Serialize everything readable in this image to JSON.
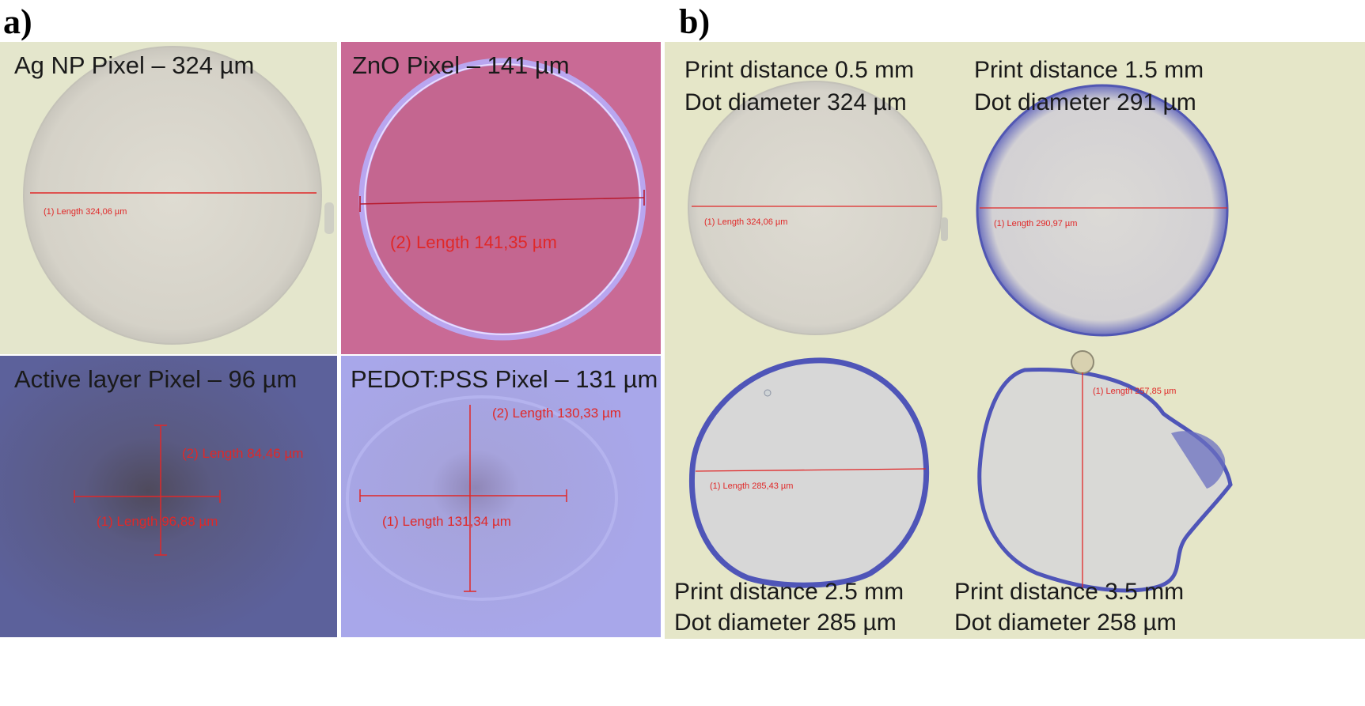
{
  "panel_a": {
    "letter": "a)",
    "tiles": [
      {
        "caption": "Ag NP Pixel – 324 µm",
        "measurements": [
          "(1)  Length 324,06 µm"
        ]
      },
      {
        "caption": "ZnO Pixel – 141 µm",
        "measurements": [
          "(2)  Length 141,35 µm"
        ]
      },
      {
        "caption": "Active layer Pixel – 96 µm",
        "measurements": [
          "(2)  Length 84,46 µm",
          "(1)  Length 96,88 µm"
        ]
      },
      {
        "caption": "PEDOT:PSS Pixel – 131 µm",
        "measurements": [
          "(2)  Length 130,33 µm",
          "(1)  Length 131,34 µm"
        ]
      }
    ]
  },
  "panel_b": {
    "letter": "b)",
    "tiles": [
      {
        "line1": "Print distance 0.5 mm",
        "line2": "Dot diameter 324 µm",
        "measurement": "(1)  Length 324,06 µm"
      },
      {
        "line1": "Print distance 1.5 mm",
        "line2": "Dot diameter 291 µm",
        "measurement": "(1)  Length 290,97 µm"
      },
      {
        "line1": "Print distance 2.5 mm",
        "line2": "Dot diameter 285 µm",
        "measurement": "(1)  Length 285,43 µm"
      },
      {
        "line1": "Print distance 3.5 mm",
        "line2": "Dot diameter 258 µm",
        "measurement": "(1)  Length 257,85 µm"
      }
    ]
  },
  "colors": {
    "cream_background": "#e5e6c8",
    "zno_background": "#c96a95",
    "active_layer_background": "#5a5f97",
    "pedot_background": "#a7a6e8",
    "measurement_line": "#e02828",
    "dot_edge_blue": "#4f55b8"
  }
}
